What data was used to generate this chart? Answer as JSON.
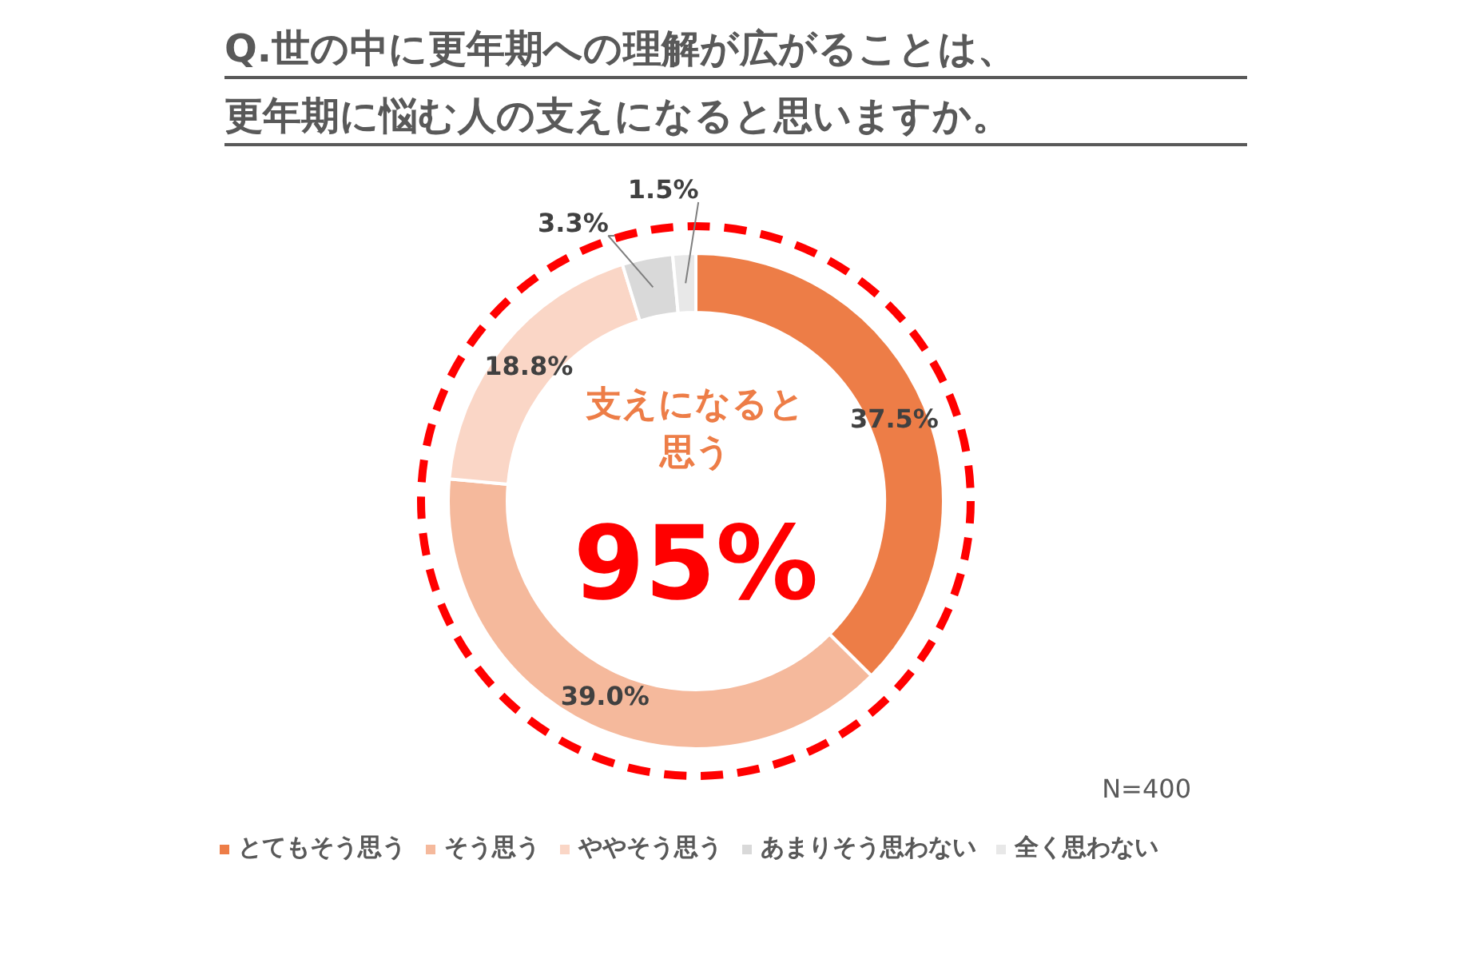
{
  "chart_data": {
    "type": "donut",
    "title": "Q.世の中に更年期への理解が広がることは、更年期に悩む人の支えになると思いますか。",
    "categories": [
      "とてもそう思う",
      "そう思う",
      "ややそう思う",
      "あまりそう思わない",
      "全く思わない"
    ],
    "values": [
      37.5,
      39.0,
      18.8,
      3.3,
      1.5
    ],
    "value_labels": [
      "37.5%",
      "39.0%",
      "18.8%",
      "3.3%",
      "1.5%"
    ],
    "colors": [
      "#ed7d47",
      "#f5b99c",
      "#fad6c6",
      "#d9d9d9",
      "#e8e8e8"
    ],
    "annotations": [
      "支えになると思う",
      "95%",
      "N=400"
    ],
    "legend": "bottom"
  }
}
